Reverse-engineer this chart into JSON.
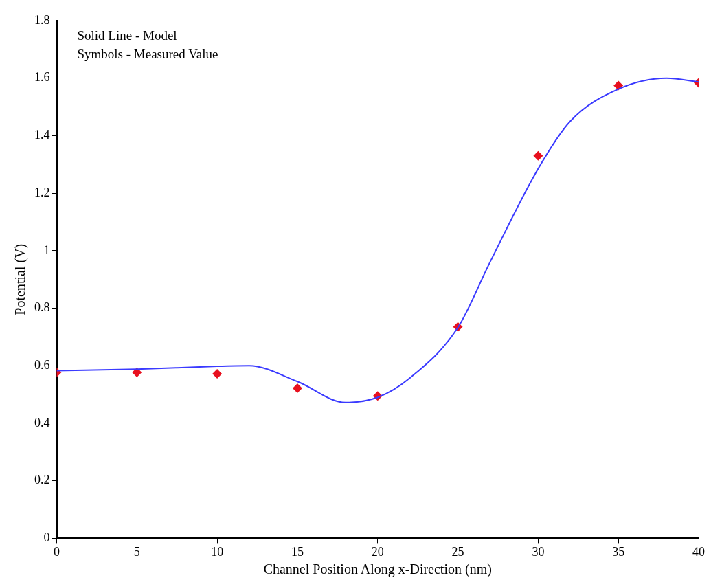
{
  "chart_data": {
    "type": "line",
    "xlabel": "Channel Position Along x-Direction (nm)",
    "ylabel": "Potential (V)",
    "annotations": [
      "Solid Line - Model",
      "Symbols - Measured Value"
    ],
    "xlim": [
      0,
      40
    ],
    "xticks": [
      0,
      5,
      10,
      15,
      20,
      25,
      30,
      35,
      40
    ],
    "ylim": [
      0,
      1.8
    ],
    "yticks": [
      0,
      0.2,
      0.4,
      0.6,
      0.8,
      1,
      1.2,
      1.4,
      1.6,
      1.8
    ],
    "grid": false,
    "legend": false,
    "series": [
      {
        "color": "#3a3aff",
        "marker": "none",
        "line_style": "solid",
        "x": [
          0,
          5,
          10,
          12,
          15,
          18,
          20,
          22,
          25,
          27,
          30,
          32,
          35,
          38,
          40
        ],
        "values": [
          0.583,
          0.588,
          0.598,
          0.6,
          0.545,
          0.472,
          0.49,
          0.557,
          0.733,
          0.96,
          1.285,
          1.45,
          1.562,
          1.6,
          1.587
        ]
      },
      {
        "type": "scatter",
        "color": "#e8101e",
        "marker": "diamond",
        "x": [
          0,
          5,
          10,
          15,
          20,
          25,
          30,
          35,
          40
        ],
        "values": [
          0.577,
          0.577,
          0.572,
          0.522,
          0.495,
          0.735,
          1.33,
          1.574,
          1.584
        ]
      }
    ]
  }
}
